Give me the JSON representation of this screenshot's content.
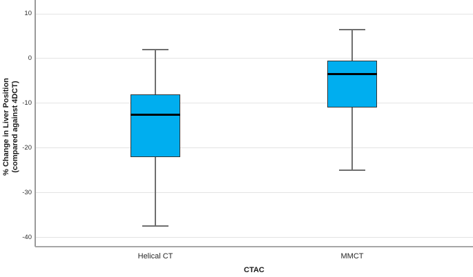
{
  "chart_data": {
    "type": "boxplot",
    "title": "",
    "xlabel": "CTAC",
    "ylabel_lines": [
      "% Change in Liver Position",
      "(compared against 4DCT)"
    ],
    "categories": [
      "Helical CT",
      "MMCT"
    ],
    "series": [
      {
        "name": "Helical CT",
        "whisker_low": -37.5,
        "q1": -22,
        "median": -12.5,
        "q3": -8,
        "whisker_high": 2
      },
      {
        "name": "MMCT",
        "whisker_low": -25,
        "q1": -11,
        "median": -3.5,
        "q3": -0.5,
        "whisker_high": 6.5
      }
    ],
    "yticks": [
      10,
      0,
      -10,
      -20,
      -30,
      -40
    ],
    "ylim": [
      -42,
      13
    ],
    "grid": "horizontal",
    "legend": "none",
    "outliers": [],
    "colors": {
      "box_fill": "#00AEEF",
      "box_border": "#333333",
      "median": "#000000",
      "whisker": "#6e6e6e",
      "gridline": "#e3e3e3",
      "axis_left": "#999999",
      "axis_bottom": "#a6a6a6",
      "text": "#262626"
    }
  }
}
